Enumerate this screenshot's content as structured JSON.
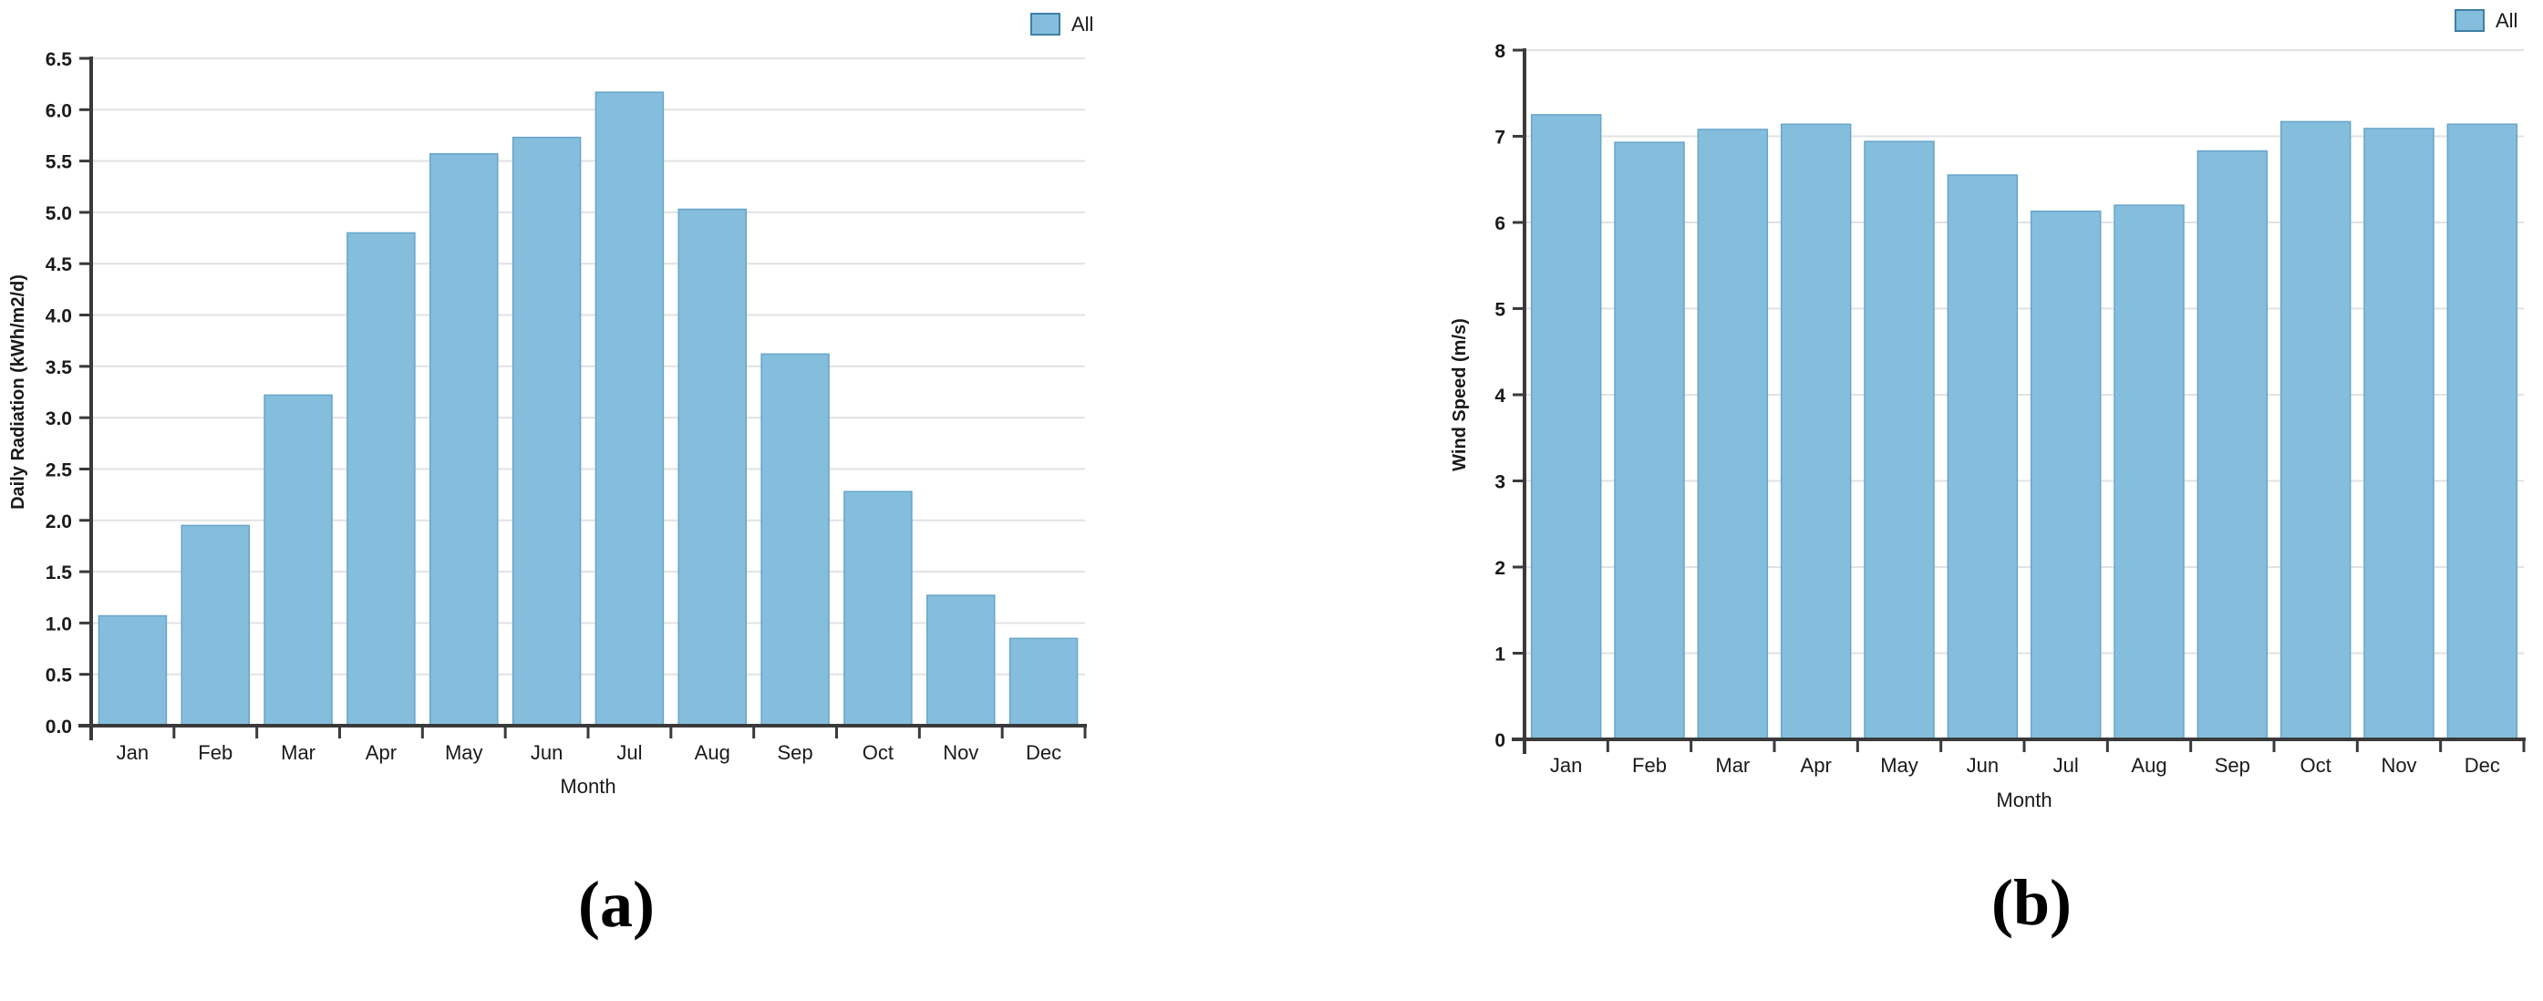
{
  "colors": {
    "bar_fill": "#85BEDC",
    "bar_stroke": "#66A5C9",
    "grid": "#E2E2E2",
    "axis": "#3A3A3A",
    "text": "#1A1A1A",
    "legend_border": "#3D7FA6",
    "caption_color": "#000000",
    "background": "#FFFFFF"
  },
  "chart_data": [
    {
      "type": "bar",
      "panel": "a",
      "caption": "(a)",
      "legend_label": "All",
      "legend_position": "top-right",
      "xlabel": "Month",
      "ylabel": "Daily Radiation (kWh/m2/d)",
      "categories": [
        "Jan",
        "Feb",
        "Mar",
        "Apr",
        "May",
        "Jun",
        "Jul",
        "Aug",
        "Sep",
        "Oct",
        "Nov",
        "Dec"
      ],
      "values": [
        1.07,
        1.95,
        3.22,
        4.8,
        5.57,
        5.73,
        6.17,
        5.03,
        3.62,
        2.28,
        1.27,
        0.85
      ],
      "ylim": [
        0,
        6.5
      ],
      "ytick_step": 0.5,
      "yticks": [
        "0.0",
        "0.5",
        "1.0",
        "1.5",
        "2.0",
        "2.5",
        "3.0",
        "3.5",
        "4.0",
        "4.5",
        "5.0",
        "5.5",
        "6.0",
        "6.5"
      ],
      "grid": true
    },
    {
      "type": "bar",
      "panel": "b",
      "caption": "(b)",
      "legend_label": "All",
      "legend_position": "top-right",
      "xlabel": "Month",
      "ylabel": "Wind Speed (m/s)",
      "categories": [
        "Jan",
        "Feb",
        "Mar",
        "Apr",
        "May",
        "Jun",
        "Jul",
        "Aug",
        "Sep",
        "Oct",
        "Nov",
        "Dec"
      ],
      "values": [
        7.25,
        6.93,
        7.08,
        7.14,
        6.94,
        6.55,
        6.13,
        6.2,
        6.83,
        7.17,
        7.09,
        7.14
      ],
      "ylim": [
        0,
        8
      ],
      "ytick_step": 1,
      "yticks": [
        "0",
        "1",
        "2",
        "3",
        "4",
        "5",
        "6",
        "7",
        "8"
      ],
      "grid": true
    }
  ]
}
